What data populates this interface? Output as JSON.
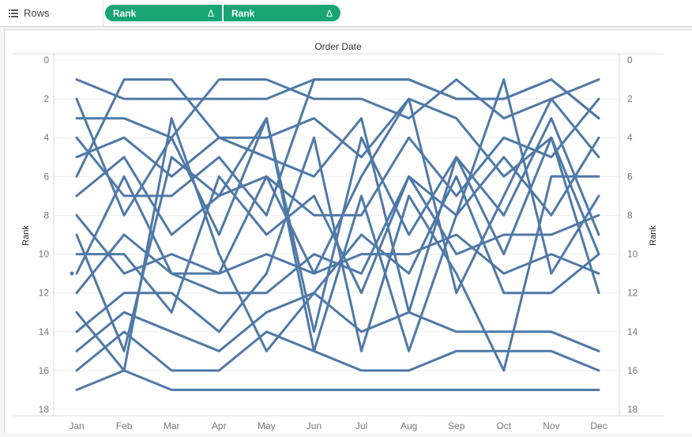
{
  "shelf": {
    "label": "Rows",
    "icon": "rows-list-icon"
  },
  "pills": [
    {
      "label": "Rank",
      "badge": "Δ"
    },
    {
      "label": "Rank",
      "badge": "Δ"
    }
  ],
  "chart_data": {
    "type": "line",
    "title": "Order Date",
    "xlabel": "",
    "ylabel": "Rank",
    "ylabel_right": "Rank",
    "categories": [
      "Jan",
      "Feb",
      "Mar",
      "Apr",
      "May",
      "Jun",
      "Jul",
      "Aug",
      "Sep",
      "Oct",
      "Nov",
      "Dec"
    ],
    "yticks": [
      0,
      2,
      4,
      6,
      8,
      10,
      12,
      14,
      16,
      18
    ],
    "ylim": [
      0,
      18
    ],
    "y_reversed": true,
    "grid": "horizontal",
    "series_color": "#4e79a7",
    "series": [
      {
        "values": [
          1,
          2,
          2,
          2,
          2,
          1,
          1,
          1,
          2,
          2,
          1,
          3
        ]
      },
      {
        "values": [
          2,
          8,
          4,
          9,
          3,
          15,
          7,
          15,
          8,
          1,
          11,
          7
        ]
      },
      {
        "values": [
          3,
          3,
          4,
          1,
          1,
          2,
          2,
          3,
          1,
          3,
          2,
          1
        ]
      },
      {
        "values": [
          4,
          7,
          7,
          5,
          8,
          1,
          1,
          1,
          2,
          2,
          1,
          3
        ]
      },
      {
        "values": [
          5,
          4,
          6,
          4,
          5,
          6,
          3,
          13,
          5,
          8,
          3,
          9
        ]
      },
      {
        "values": [
          6,
          1,
          1,
          4,
          4,
          3,
          5,
          2,
          3,
          6,
          4,
          12
        ]
      },
      {
        "values": [
          7,
          5,
          9,
          7,
          6,
          8,
          8,
          4,
          7,
          4,
          5,
          2
        ]
      },
      {
        "values": [
          8,
          11,
          10,
          11,
          6,
          11,
          6,
          2,
          12,
          7,
          2,
          5
        ]
      },
      {
        "values": [
          9,
          15,
          5,
          7,
          3,
          14,
          4,
          9,
          5,
          10,
          4,
          10
        ]
      },
      {
        "values": [
          10,
          10,
          13,
          6,
          9,
          7,
          12,
          6,
          10,
          9,
          9,
          8
        ]
      },
      {
        "values": [
          11,
          6,
          11,
          11,
          10,
          11,
          10,
          10,
          9,
          11,
          10,
          11
        ]
      },
      {
        "values": [
          12,
          9,
          11,
          12,
          12,
          10,
          11,
          6,
          8,
          5,
          8,
          4
        ]
      },
      {
        "values": [
          13,
          16,
          3,
          10,
          15,
          12,
          9,
          11,
          6,
          12,
          12,
          10
        ]
      },
      {
        "values": [
          14,
          12,
          12,
          14,
          11,
          4,
          15,
          7,
          11,
          16,
          6,
          6
        ]
      },
      {
        "values": [
          15,
          13,
          14,
          15,
          13,
          12,
          14,
          13,
          14,
          14,
          14,
          15
        ]
      },
      {
        "values": [
          16,
          14,
          16,
          16,
          14,
          15,
          16,
          16,
          15,
          15,
          15,
          16
        ]
      },
      {
        "values": [
          null,
          null,
          null,
          null,
          null,
          null,
          null,
          null,
          null,
          null,
          null,
          null
        ]
      },
      {
        "values": [
          17,
          16,
          17,
          17,
          17,
          17,
          17,
          17,
          17,
          17,
          17,
          17
        ]
      }
    ],
    "isolated_points": [
      {
        "x": "Jan",
        "y": 11
      }
    ]
  }
}
